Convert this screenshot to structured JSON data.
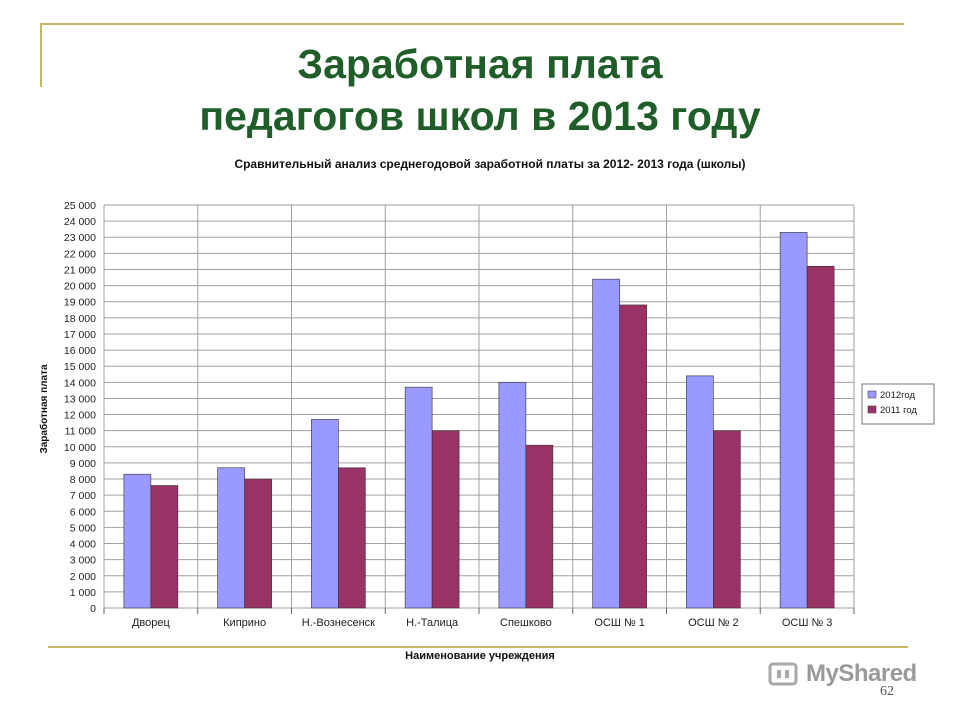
{
  "slide": {
    "title_line1": "Заработная плата",
    "title_line2": "педагогов школ в 2013 году",
    "page_number": "62",
    "watermark": "MyShared"
  },
  "colors": {
    "title": "#1f5e28",
    "series_2012": "#9999ff",
    "series_2011": "#993366",
    "grid": "#a0a0a0",
    "decor_line": "#c8b866"
  },
  "chart_data": {
    "type": "bar",
    "title": "Сравнительный анализ среднегодовой заработной платы за 2012- 2013 года (школы)",
    "xlabel": "Наименование учреждения",
    "ylabel": "Заработная плата",
    "ylim": [
      0,
      25000
    ],
    "yticks": [
      "0",
      "1 000",
      "2 000",
      "3 000",
      "4 000",
      "5 000",
      "6 000",
      "7 000",
      "8 000",
      "9 000",
      "10 000",
      "11 000",
      "12 000",
      "13 000",
      "14 000",
      "15 000",
      "16 000",
      "17 000",
      "18 000",
      "19 000",
      "20 000",
      "21 000",
      "22 000",
      "23 000",
      "24 000",
      "25 000"
    ],
    "grid": true,
    "legend_position": "right",
    "categories": [
      "Дворец",
      "Киприно",
      "Н.-Вознесенск",
      "Н.-Талица",
      "Спешково",
      "ОСШ № 1",
      "ОСШ № 2",
      "ОСШ № 3"
    ],
    "series": [
      {
        "name": "2012год",
        "color": "#9999ff",
        "values": [
          8300,
          8700,
          11700,
          13700,
          14000,
          20400,
          14400,
          23300
        ]
      },
      {
        "name": "2011 год",
        "color": "#993366",
        "values": [
          7600,
          8000,
          8700,
          11000,
          10100,
          18800,
          11000,
          21200
        ]
      }
    ]
  }
}
